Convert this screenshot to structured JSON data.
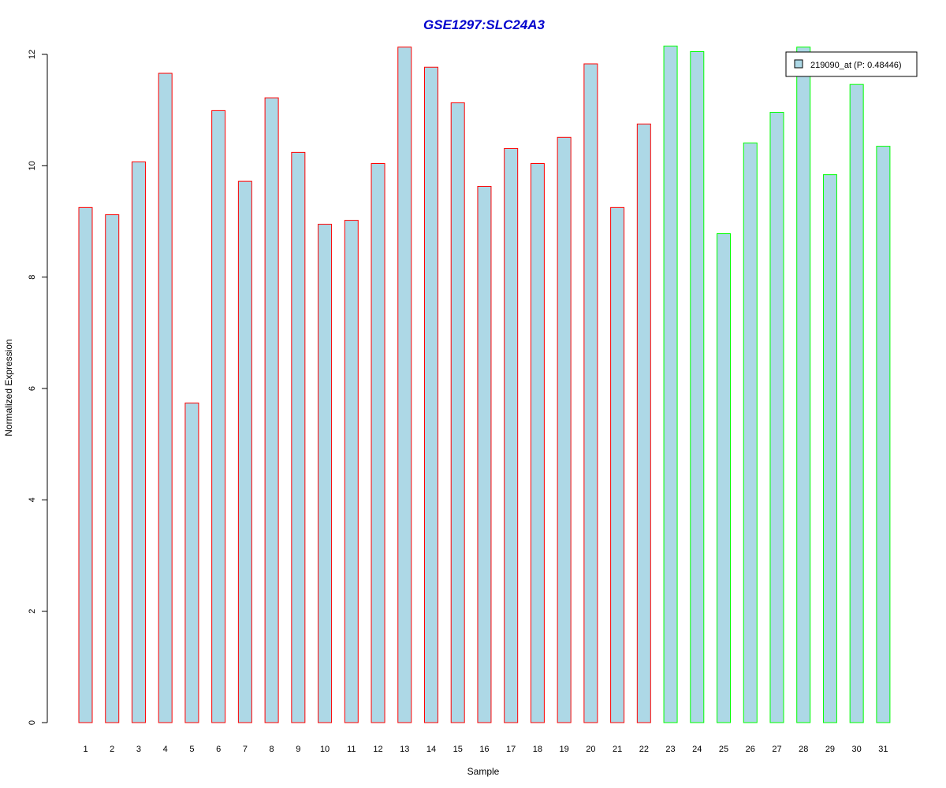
{
  "colors": {
    "bar_fill": "#add8e6",
    "group1_border": "#ff0000",
    "group2_border": "#00ff00",
    "title": "#0000cd",
    "axis": "#000000"
  },
  "chart_data": {
    "type": "bar",
    "title": "GSE1297:SLC24A3",
    "xlabel": "Sample",
    "ylabel": "Normalized Expression",
    "ylim": [
      0,
      12
    ],
    "yticks": [
      "0",
      "2",
      "4",
      "6",
      "8",
      "10",
      "12"
    ],
    "categories": [
      "1",
      "2",
      "3",
      "4",
      "5",
      "6",
      "7",
      "8",
      "9",
      "10",
      "11",
      "12",
      "13",
      "14",
      "15",
      "16",
      "17",
      "18",
      "19",
      "20",
      "21",
      "22",
      "23",
      "24",
      "25",
      "26",
      "27",
      "28",
      "29",
      "30",
      "31"
    ],
    "values": [
      9.25,
      9.12,
      10.07,
      11.66,
      5.74,
      10.99,
      9.72,
      11.22,
      10.24,
      8.95,
      9.02,
      10.04,
      12.13,
      11.77,
      11.13,
      9.63,
      10.31,
      10.04,
      10.51,
      11.83,
      9.25,
      10.75,
      12.15,
      12.05,
      8.78,
      10.41,
      10.96,
      12.13,
      9.84,
      11.46,
      10.35
    ],
    "groups": [
      1,
      1,
      1,
      1,
      1,
      1,
      1,
      1,
      1,
      1,
      1,
      1,
      1,
      1,
      1,
      1,
      1,
      1,
      1,
      1,
      1,
      1,
      2,
      2,
      2,
      2,
      2,
      2,
      2,
      2,
      2
    ],
    "legend": {
      "label": "219090_at (P: 0.48446)",
      "position": "top-right"
    },
    "grid": false
  }
}
